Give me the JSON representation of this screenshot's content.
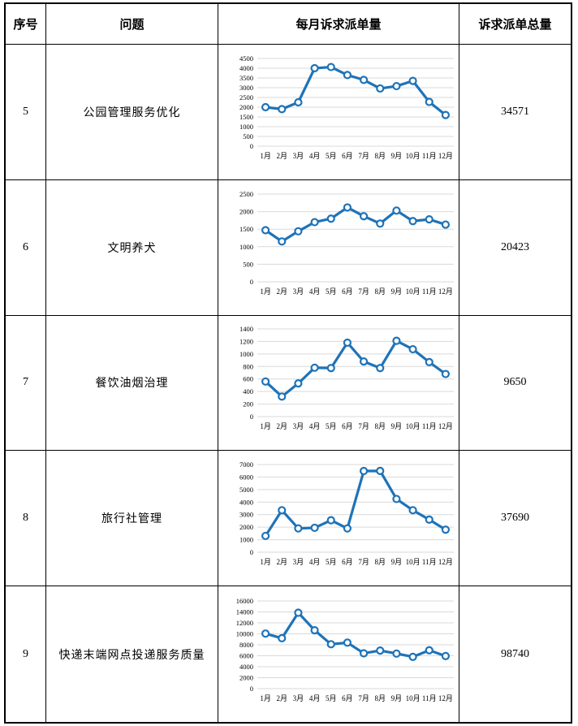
{
  "headers": {
    "seq": "序号",
    "issue": "问题",
    "monthly": "每月诉求派单量",
    "total": "诉求派单总量"
  },
  "colors": {
    "line": "#1E73B8",
    "marker_fill": "#FFFFFF",
    "grid": "#D9D9D9",
    "border": "#000000"
  },
  "rows": [
    {
      "seq": "5",
      "issue": "公园管理服务优化",
      "total": "34571"
    },
    {
      "seq": "6",
      "issue": "文明养犬",
      "total": "20423"
    },
    {
      "seq": "7",
      "issue": "餐饮油烟治理",
      "total": "9650"
    },
    {
      "seq": "8",
      "issue": "旅行社管理",
      "total": "37690"
    },
    {
      "seq": "9",
      "issue": "快递末端网点投递服务质量",
      "total": "98740"
    }
  ],
  "chart_data": [
    {
      "type": "line",
      "title": "公园管理服务优化 每月诉求派单量",
      "categories": [
        "1月",
        "2月",
        "3月",
        "4月",
        "5月",
        "6月",
        "7月",
        "8月",
        "9月",
        "10月",
        "11月",
        "12月"
      ],
      "values": [
        2000,
        1900,
        2250,
        4000,
        4060,
        3650,
        3400,
        2960,
        3080,
        3350,
        2270,
        1600
      ],
      "xlabel": "",
      "ylabel": "",
      "ylim": [
        0,
        4500
      ],
      "ytick": 500,
      "grid": true,
      "legend": "none",
      "markers": "circle"
    },
    {
      "type": "line",
      "title": "文明养犬 每月诉求派单量",
      "categories": [
        "1月",
        "2月",
        "3月",
        "4月",
        "5月",
        "6月",
        "7月",
        "8月",
        "9月",
        "10月",
        "11月",
        "12月"
      ],
      "values": [
        1470,
        1150,
        1440,
        1700,
        1800,
        2120,
        1870,
        1660,
        2030,
        1730,
        1780,
        1630
      ],
      "xlabel": "",
      "ylabel": "",
      "ylim": [
        0,
        2500
      ],
      "ytick": 500,
      "grid": true,
      "legend": "none",
      "markers": "circle"
    },
    {
      "type": "line",
      "title": "餐饮油烟治理 每月诉求派单量",
      "categories": [
        "1月",
        "2月",
        "3月",
        "4月",
        "5月",
        "6月",
        "7月",
        "8月",
        "9月",
        "10月",
        "11月",
        "12月"
      ],
      "values": [
        560,
        320,
        530,
        780,
        775,
        1180,
        880,
        775,
        1210,
        1075,
        870,
        680
      ],
      "xlabel": "",
      "ylabel": "",
      "ylim": [
        0,
        1400
      ],
      "ytick": 200,
      "grid": true,
      "legend": "none",
      "markers": "circle"
    },
    {
      "type": "line",
      "title": "旅行社管理 每月诉求派单量",
      "categories": [
        "1月",
        "2月",
        "3月",
        "4月",
        "5月",
        "6月",
        "7月",
        "8月",
        "9月",
        "10月",
        "11月",
        "12月"
      ],
      "values": [
        1300,
        3350,
        1900,
        1950,
        2550,
        1900,
        6480,
        6490,
        4250,
        3350,
        2600,
        1800
      ],
      "xlabel": "",
      "ylabel": "",
      "ylim": [
        0,
        7000
      ],
      "ytick": 1000,
      "grid": true,
      "legend": "none",
      "markers": "circle"
    },
    {
      "type": "line",
      "title": "快递末端网点投递服务质量 每月诉求派单量",
      "categories": [
        "1月",
        "2月",
        "3月",
        "4月",
        "5月",
        "6月",
        "7月",
        "8月",
        "9月",
        "10月",
        "11月",
        "12月"
      ],
      "values": [
        10050,
        9200,
        13850,
        10650,
        8100,
        8400,
        6450,
        6950,
        6400,
        5800,
        7000,
        5950
      ],
      "xlabel": "",
      "ylabel": "",
      "ylim": [
        0,
        16000
      ],
      "ytick": 2000,
      "grid": true,
      "legend": "none",
      "markers": "circle"
    }
  ]
}
